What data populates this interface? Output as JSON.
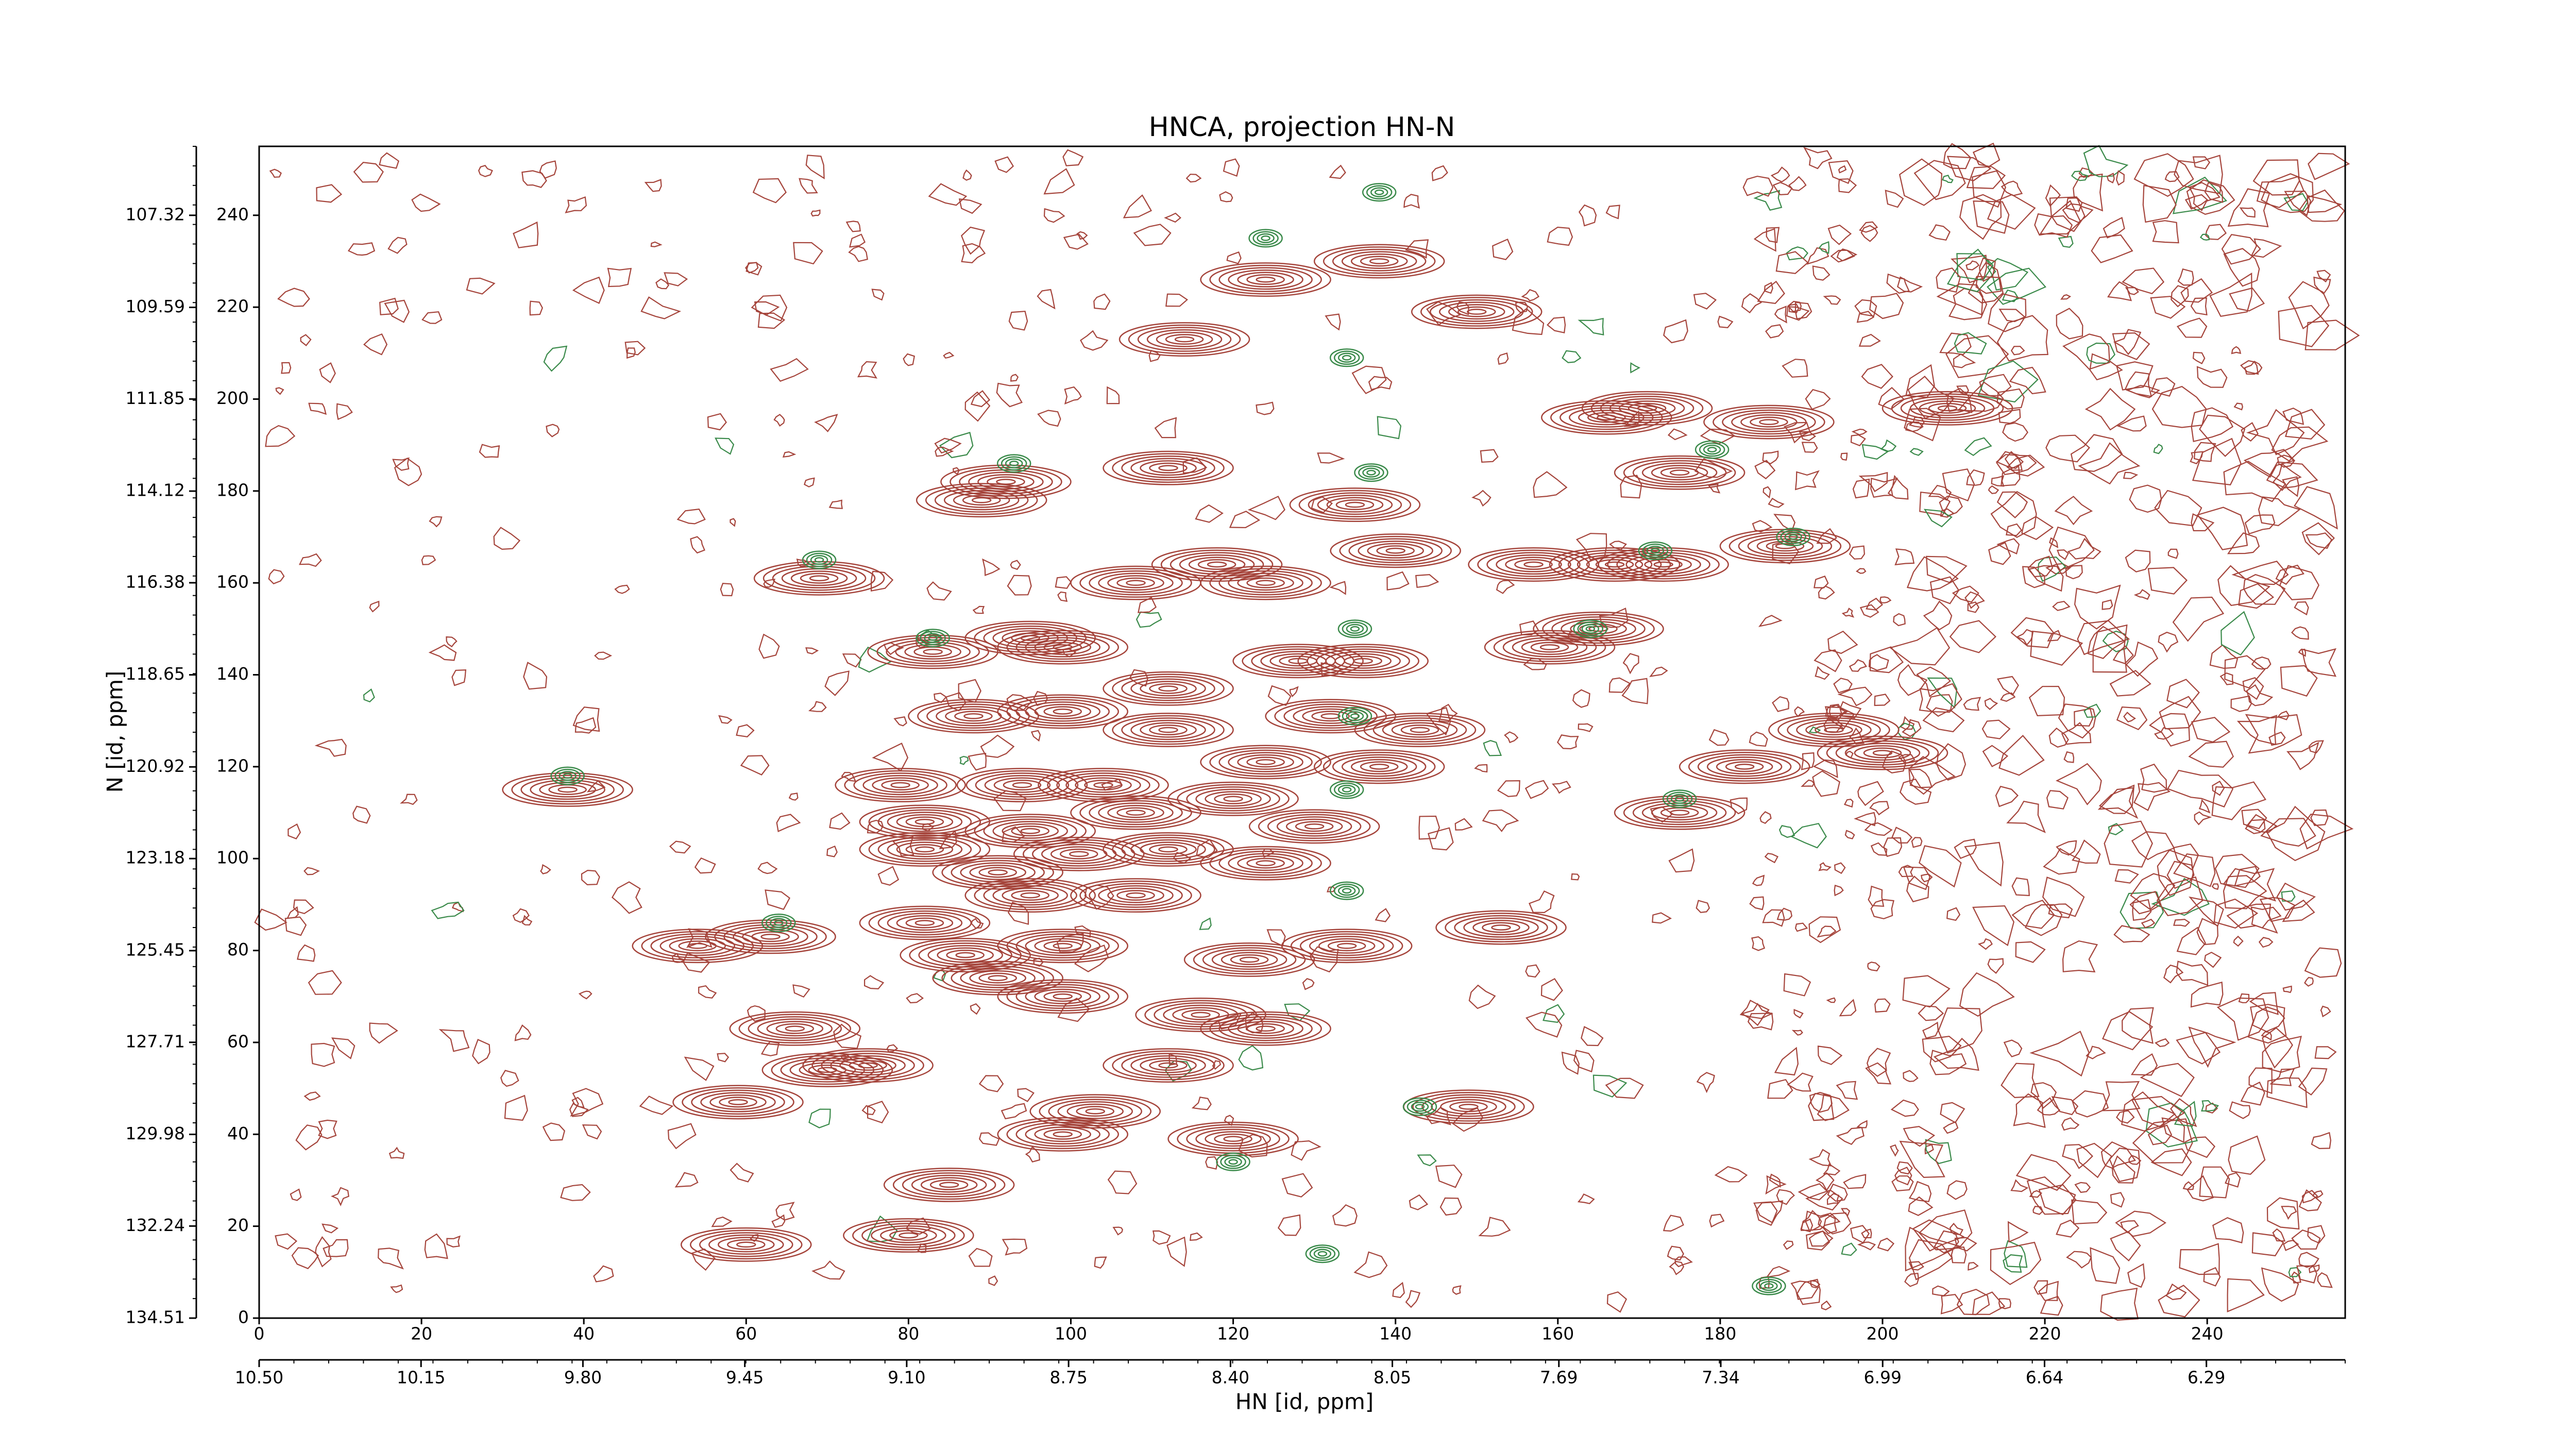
{
  "chart_data": {
    "type": "contour",
    "title": "HNCA, projection HN-N",
    "xlabel": "HN [id, ppm]",
    "ylabel": "N [id, ppm]",
    "xlim": [
      0,
      257
    ],
    "xticks": [
      0,
      20,
      40,
      60,
      80,
      100,
      120,
      140,
      160,
      180,
      200,
      220,
      240
    ],
    "ylim": [
      0,
      255
    ],
    "yticks": [
      0,
      20,
      40,
      60,
      80,
      100,
      120,
      140,
      160,
      180,
      200,
      220,
      240
    ],
    "x2lim": [
      10.5,
      5.99
    ],
    "x2ticks": [
      {
        "value": 10.5,
        "label": "10.50"
      },
      10.15,
      {
        "value": 9.8,
        "label": "9.80"
      },
      9.45,
      {
        "value": 9.1,
        "label": "9.10"
      },
      8.75,
      {
        "value": 8.4,
        "label": "8.40"
      },
      8.05,
      7.69,
      7.34,
      6.99,
      6.64,
      6.29
    ],
    "y2lim": [
      134.51,
      105.62
    ],
    "y2ticks": [
      134.51,
      132.24,
      129.98,
      127.71,
      125.45,
      123.18,
      120.92,
      118.65,
      116.38,
      114.12,
      111.85,
      109.59,
      107.32
    ],
    "series": [
      {
        "color": "#a5443b",
        "x": [
          38,
          54,
          63,
          69,
          59,
          60,
          80,
          85,
          66,
          75,
          70,
          79,
          82,
          82,
          83,
          89,
          92,
          95,
          99,
          108,
          112,
          118,
          124,
          114,
          124,
          138,
          135,
          140,
          150,
          157,
          167,
          175,
          186,
          188,
          173,
          159,
          165,
          175,
          183,
          194,
          200,
          166,
          171,
          208,
          153,
          149,
          120,
          99,
          103,
          112,
          124,
          116,
          99,
          91,
          87,
          99,
          122,
          134,
          82,
          95,
          108,
          101,
          91,
          112,
          124,
          130,
          120,
          138,
          132,
          124,
          112,
          112,
          128,
          136,
          143,
          104,
          94,
          88,
          99,
          108,
          95
        ],
        "values": [
          115,
          81,
          83,
          161,
          47,
          16,
          18,
          29,
          63,
          55,
          54,
          116,
          102,
          108,
          145,
          178,
          182,
          148,
          146,
          160,
          185,
          164,
          160,
          213,
          226,
          230,
          177,
          167,
          219,
          164,
          164,
          184,
          195,
          168,
          164,
          146,
          150,
          110,
          120,
          128,
          123,
          196,
          198,
          198,
          85,
          46,
          39,
          40,
          45,
          55,
          63,
          66,
          70,
          74,
          79,
          81,
          78,
          81,
          86,
          92,
          92,
          101,
          97,
          102,
          99,
          107,
          113,
          120,
          131,
          121,
          128,
          137,
          143,
          143,
          128,
          116,
          116,
          131,
          132,
          110,
          106
        ]
      },
      {
        "color": "#3a8a4a",
        "x": [
          38,
          64,
          69,
          83,
          93,
          124,
          138,
          134,
          137,
          135,
          135,
          134,
          134,
          175,
          189,
          179,
          172,
          164,
          131,
          186,
          120,
          143
        ],
        "values": [
          118,
          86,
          165,
          148,
          186,
          235,
          245,
          209,
          184,
          150,
          131,
          115,
          93,
          113,
          170,
          189,
          167,
          150,
          14,
          7,
          34,
          46
        ]
      }
    ]
  }
}
